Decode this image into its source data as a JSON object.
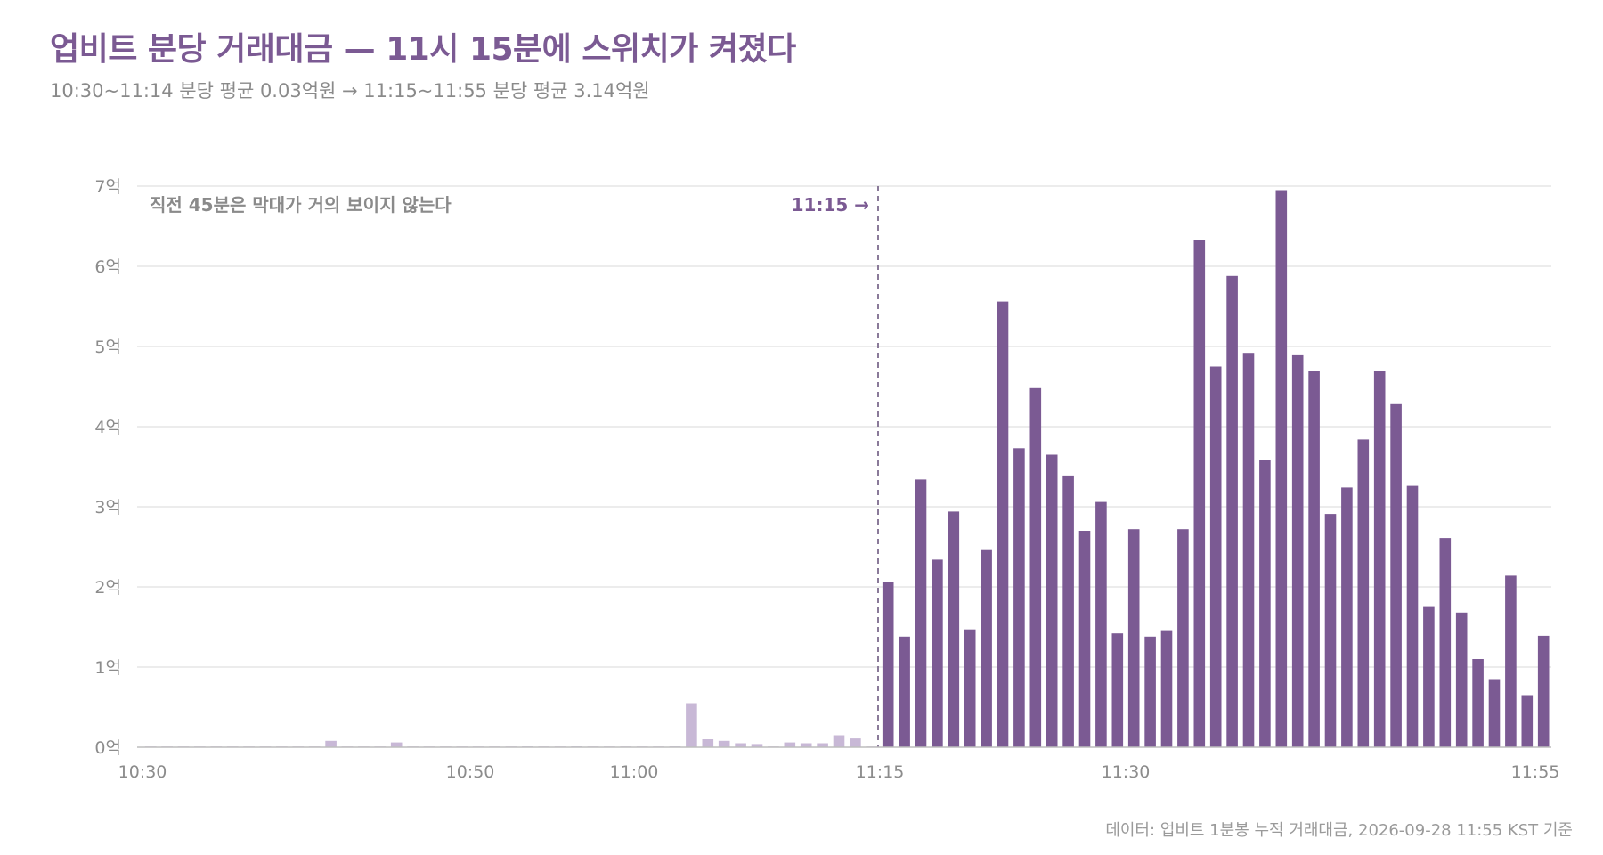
{
  "header": {
    "title": "업비트 분당 거래대금 — 11시 15분에 스위치가 켜졌다",
    "subtitle": "10:30~11:14 분당 평균 0.03억원 → 11:15~11:55 분당 평균 3.14억원"
  },
  "footer": {
    "source": "데이터: 업비트 1분봉 누적 거래대금, 2026-09-28 11:55 KST 기준"
  },
  "colors": {
    "bar_after": "#7b5a93",
    "bar_before": "#c8b8d6",
    "grid": "#e6e6e6",
    "marker_line": "#8a7a99"
  },
  "chart_data": {
    "type": "bar",
    "unit": "억",
    "x_start": "10:30",
    "minutes": 86,
    "ylim": [
      0,
      7
    ],
    "yticks": [
      0,
      1,
      2,
      3,
      4,
      5,
      6,
      7
    ],
    "ytick_labels": [
      "0억",
      "1억",
      "2억",
      "3억",
      "4억",
      "5억",
      "6억",
      "7억"
    ],
    "xticks": [
      {
        "minute": 0,
        "label": "10:30"
      },
      {
        "minute": 20,
        "label": "10:50"
      },
      {
        "minute": 30,
        "label": "11:00"
      },
      {
        "minute": 45,
        "label": "11:15"
      },
      {
        "minute": 60,
        "label": "11:30"
      },
      {
        "minute": 85,
        "label": "11:55"
      }
    ],
    "switch_minute": 45,
    "switch_label": "11:15 →",
    "annotation": "직전 45분은 막대가 거의 보이지 않는다",
    "values": [
      0.005,
      0.005,
      0.005,
      0.005,
      0.005,
      0.005,
      0.005,
      0.005,
      0.005,
      0.005,
      0.005,
      0.08,
      0.005,
      0.005,
      0.005,
      0.06,
      0.005,
      0.005,
      0.005,
      0.005,
      0.005,
      0.005,
      0.005,
      0.01,
      0.005,
      0.005,
      0.01,
      0.005,
      0.005,
      0.005,
      0.005,
      0.005,
      0.01,
      0.55,
      0.1,
      0.08,
      0.05,
      0.04,
      0.005,
      0.06,
      0.05,
      0.05,
      0.15,
      0.11,
      0.005,
      2.06,
      1.38,
      3.34,
      2.34,
      2.94,
      1.47,
      2.47,
      5.56,
      3.73,
      4.48,
      3.65,
      3.39,
      2.7,
      3.06,
      1.42,
      2.72,
      1.38,
      1.46,
      2.72,
      6.33,
      4.75,
      5.88,
      4.92,
      3.58,
      6.95,
      4.89,
      4.7,
      2.91,
      3.24,
      3.84,
      4.7,
      4.28,
      3.26,
      1.76,
      2.61,
      1.68,
      1.1,
      0.85,
      2.14,
      0.65,
      1.39
    ]
  }
}
